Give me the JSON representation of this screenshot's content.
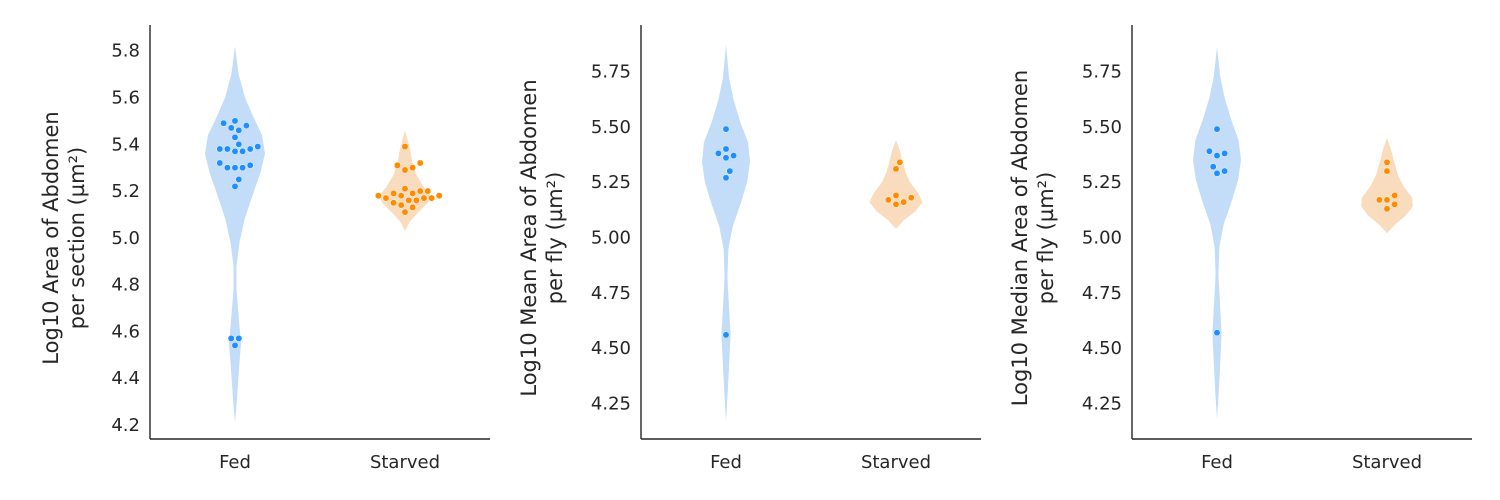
{
  "colors": {
    "fed_point": "#1f8fff",
    "fed_violin": "#c3dcf7",
    "starved_point": "#ff8c00",
    "starved_violin": "#f9dcbe",
    "axis": "#262626"
  },
  "chart_data": [
    {
      "type": "violin",
      "ylabel_line1": "Log10 Area of Abdomen",
      "ylabel_line2": "per section (µm²)",
      "categories": [
        "Fed",
        "Starved"
      ],
      "ylim": [
        4.14,
        5.91
      ],
      "yticks": [
        4.2,
        4.4,
        4.6,
        4.8,
        5.0,
        5.2,
        5.4,
        5.6,
        5.8
      ],
      "ytick_labels": [
        "4.2",
        "4.4",
        "4.6",
        "4.8",
        "5.0",
        "5.2",
        "5.4",
        "5.6",
        "5.8"
      ],
      "violins": [
        {
          "category": "Fed",
          "min": 4.21,
          "max": 5.82,
          "profile": [
            [
              4.21,
              0
            ],
            [
              4.3,
              0.06
            ],
            [
              4.45,
              0.14
            ],
            [
              4.55,
              0.2
            ],
            [
              4.65,
              0.13
            ],
            [
              4.78,
              0.05
            ],
            [
              4.88,
              0.05
            ],
            [
              4.98,
              0.15
            ],
            [
              5.08,
              0.32
            ],
            [
              5.18,
              0.58
            ],
            [
              5.28,
              0.85
            ],
            [
              5.36,
              1.0
            ],
            [
              5.44,
              0.9
            ],
            [
              5.52,
              0.6
            ],
            [
              5.6,
              0.33
            ],
            [
              5.7,
              0.12
            ],
            [
              5.82,
              0
            ]
          ]
        },
        {
          "category": "Starved",
          "min": 5.03,
          "max": 5.46,
          "profile": [
            [
              5.03,
              0
            ],
            [
              5.07,
              0.18
            ],
            [
              5.11,
              0.5
            ],
            [
              5.15,
              0.85
            ],
            [
              5.18,
              0.95
            ],
            [
              5.22,
              0.68
            ],
            [
              5.27,
              0.42
            ],
            [
              5.32,
              0.28
            ],
            [
              5.38,
              0.18
            ],
            [
              5.43,
              0.07
            ],
            [
              5.46,
              0
            ]
          ]
        }
      ],
      "series": [
        {
          "category": "Fed",
          "values": [
            5.5,
            5.49,
            5.48,
            5.47,
            5.46,
            5.43,
            5.4,
            5.39,
            5.38,
            5.38,
            5.38,
            5.37,
            5.37,
            5.32,
            5.31,
            5.3,
            5.3,
            5.3,
            5.25,
            5.22,
            4.57,
            4.57,
            4.54
          ]
        },
        {
          "category": "Starved",
          "values": [
            5.39,
            5.32,
            5.31,
            5.3,
            5.29,
            5.21,
            5.2,
            5.2,
            5.19,
            5.19,
            5.18,
            5.18,
            5.18,
            5.17,
            5.17,
            5.17,
            5.16,
            5.16,
            5.15,
            5.14,
            5.13,
            5.11
          ]
        }
      ]
    },
    {
      "type": "violin",
      "ylabel_line1": "Log10 Mean Area of Abdomen",
      "ylabel_line2": "per fly (µm²)",
      "categories": [
        "Fed",
        "Starved"
      ],
      "ylim": [
        4.09,
        5.96
      ],
      "yticks": [
        4.25,
        4.5,
        4.75,
        5.0,
        5.25,
        5.5,
        5.75
      ],
      "ytick_labels": [
        "4.25",
        "4.50",
        "4.75",
        "5.00",
        "5.25",
        "5.50",
        "5.75"
      ],
      "violins": [
        {
          "category": "Fed",
          "min": 4.17,
          "max": 5.87,
          "profile": [
            [
              4.17,
              0
            ],
            [
              4.3,
              0.07
            ],
            [
              4.45,
              0.14
            ],
            [
              4.56,
              0.19
            ],
            [
              4.68,
              0.13
            ],
            [
              4.82,
              0.06
            ],
            [
              4.95,
              0.1
            ],
            [
              5.05,
              0.28
            ],
            [
              5.15,
              0.6
            ],
            [
              5.25,
              0.88
            ],
            [
              5.34,
              1.0
            ],
            [
              5.43,
              0.92
            ],
            [
              5.52,
              0.6
            ],
            [
              5.62,
              0.32
            ],
            [
              5.72,
              0.13
            ],
            [
              5.87,
              0
            ]
          ]
        },
        {
          "category": "Starved",
          "min": 5.04,
          "max": 5.44,
          "profile": [
            [
              5.04,
              0
            ],
            [
              5.08,
              0.3
            ],
            [
              5.12,
              0.7
            ],
            [
              5.16,
              0.95
            ],
            [
              5.2,
              0.8
            ],
            [
              5.25,
              0.5
            ],
            [
              5.3,
              0.33
            ],
            [
              5.35,
              0.22
            ],
            [
              5.4,
              0.12
            ],
            [
              5.44,
              0
            ]
          ]
        }
      ],
      "series": [
        {
          "category": "Fed",
          "values": [
            5.49,
            5.4,
            5.38,
            5.37,
            5.36,
            5.3,
            5.27,
            4.56
          ]
        },
        {
          "category": "Starved",
          "values": [
            5.34,
            5.31,
            5.19,
            5.18,
            5.17,
            5.16,
            5.15
          ]
        }
      ]
    },
    {
      "type": "violin",
      "ylabel_line1": "Log10 Median Area of Abdomen",
      "ylabel_line2": "per fly (µm²)",
      "categories": [
        "Fed",
        "Starved"
      ],
      "ylim": [
        4.09,
        5.96
      ],
      "yticks": [
        4.25,
        4.5,
        4.75,
        5.0,
        5.25,
        5.5,
        5.75
      ],
      "ytick_labels": [
        "4.25",
        "4.50",
        "4.75",
        "5.00",
        "5.25",
        "5.50",
        "5.75"
      ],
      "violins": [
        {
          "category": "Fed",
          "min": 4.18,
          "max": 5.86,
          "profile": [
            [
              4.18,
              0
            ],
            [
              4.3,
              0.07
            ],
            [
              4.45,
              0.14
            ],
            [
              4.57,
              0.19
            ],
            [
              4.69,
              0.13
            ],
            [
              4.83,
              0.06
            ],
            [
              4.96,
              0.1
            ],
            [
              5.06,
              0.28
            ],
            [
              5.16,
              0.6
            ],
            [
              5.26,
              0.88
            ],
            [
              5.35,
              1.0
            ],
            [
              5.44,
              0.9
            ],
            [
              5.53,
              0.6
            ],
            [
              5.63,
              0.32
            ],
            [
              5.73,
              0.13
            ],
            [
              5.86,
              0
            ]
          ]
        },
        {
          "category": "Starved",
          "min": 5.02,
          "max": 5.45,
          "profile": [
            [
              5.02,
              0
            ],
            [
              5.06,
              0.3
            ],
            [
              5.1,
              0.68
            ],
            [
              5.14,
              0.92
            ],
            [
              5.18,
              0.9
            ],
            [
              5.23,
              0.6
            ],
            [
              5.28,
              0.4
            ],
            [
              5.34,
              0.26
            ],
            [
              5.4,
              0.14
            ],
            [
              5.45,
              0
            ]
          ]
        }
      ],
      "series": [
        {
          "category": "Fed",
          "values": [
            5.49,
            5.39,
            5.38,
            5.37,
            5.32,
            5.3,
            5.29,
            4.57
          ]
        },
        {
          "category": "Starved",
          "values": [
            5.34,
            5.3,
            5.19,
            5.17,
            5.17,
            5.15,
            5.13
          ]
        }
      ]
    }
  ]
}
